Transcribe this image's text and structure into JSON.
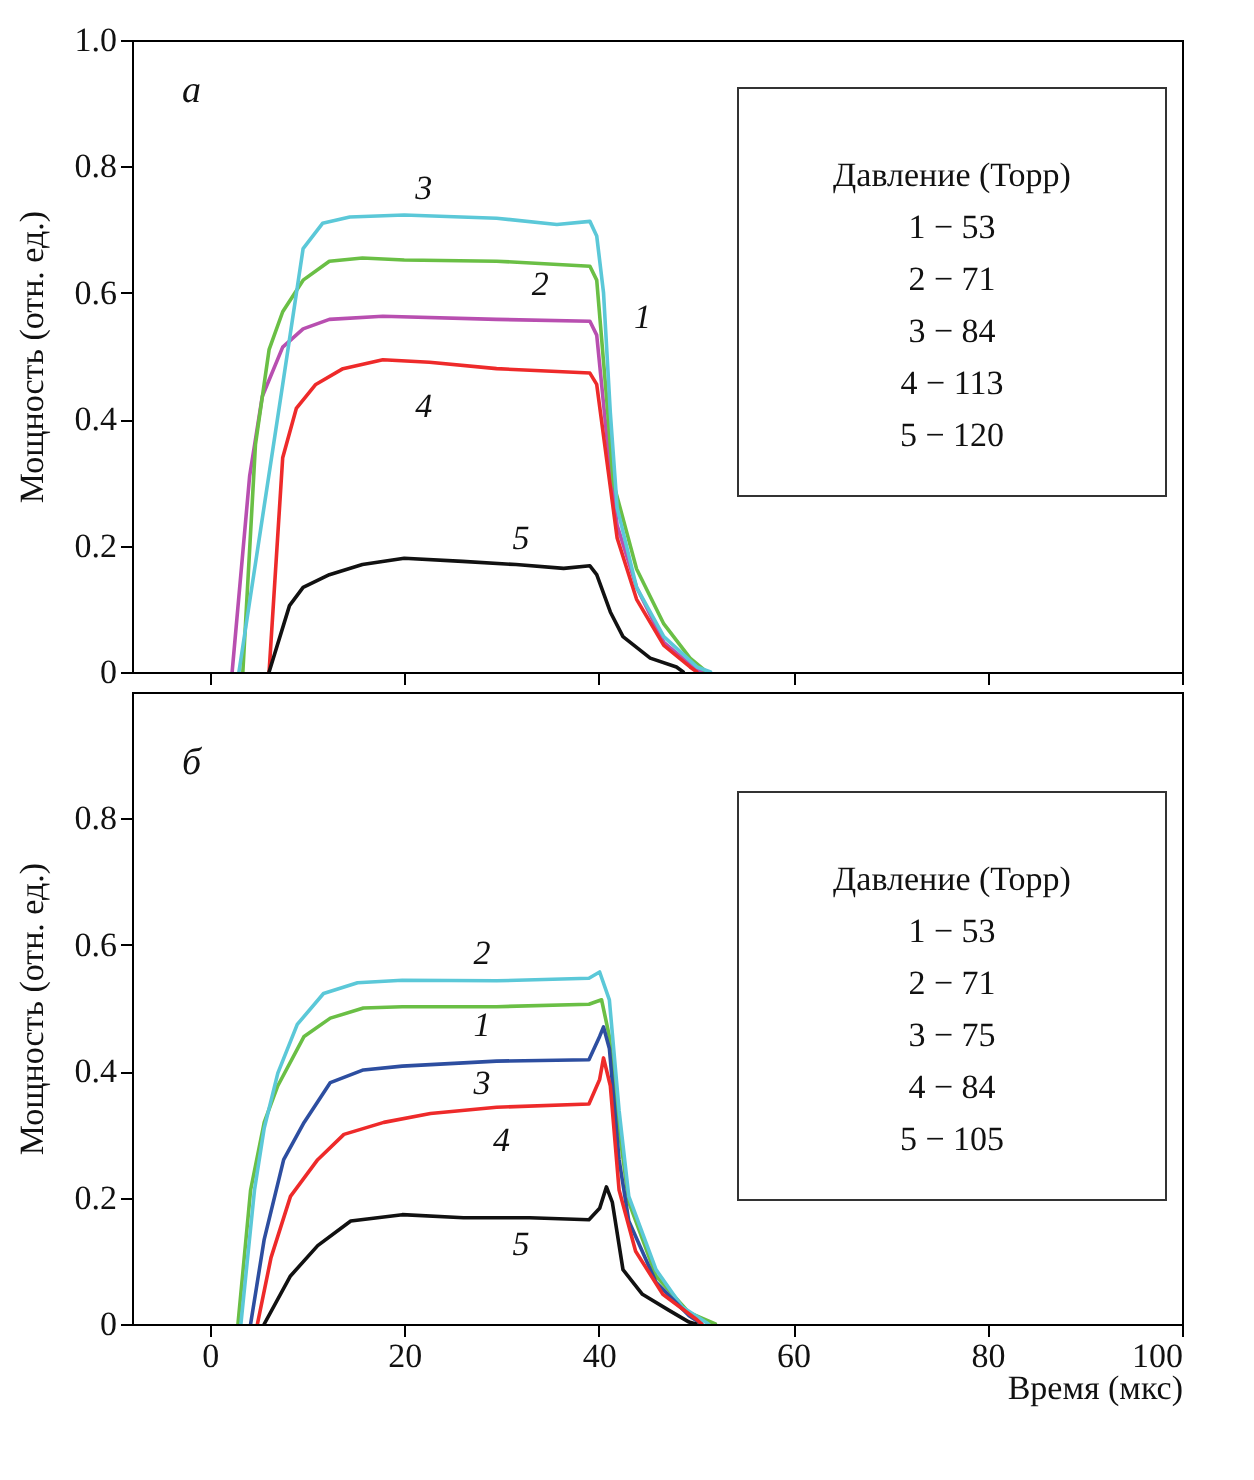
{
  "chart_data": [
    {
      "type": "line",
      "title": "а",
      "ylabel": "Мощность (отн. ед.)",
      "legend_title": "Давление (Торр)",
      "annotations": [
        "1 − 53",
        "2 − 71",
        "3 − 84",
        "4 − 113",
        "5 − 120"
      ],
      "xlim": [
        -8,
        100
      ],
      "ylim": [
        0,
        1
      ],
      "xticks": [
        0,
        20,
        40,
        60,
        80,
        100
      ],
      "yticks": [
        0,
        0.2,
        0.4,
        0.6,
        0.8,
        {
          "value": 1,
          "label": "1.0"
        }
      ],
      "tick_labels": "y",
      "grid": false,
      "series": [
        {
          "name": "1",
          "color": "#b84fb0",
          "x": [
            2.3,
            4.1,
            5.4,
            7.5,
            9.6,
            12.3,
            17.8,
            29.5,
            39.1,
            39.8,
            40.8,
            41.9,
            43.9,
            46.7,
            50.1,
            50.8
          ],
          "values": [
            0,
            0.31,
            0.436,
            0.514,
            0.543,
            0.558,
            0.563,
            0.558,
            0.555,
            0.533,
            0.378,
            0.232,
            0.134,
            0.047,
            0.003,
            0
          ]
        },
        {
          "name": "2",
          "color": "#6abf45",
          "x": [
            3.4,
            4.7,
            6.1,
            7.5,
            9.6,
            12.3,
            15.7,
            20,
            29.5,
            39.1,
            39.8,
            40.8,
            41.5,
            43.9,
            46.7,
            49.4,
            51.1
          ],
          "values": [
            0,
            0.36,
            0.51,
            0.57,
            0.62,
            0.65,
            0.655,
            0.652,
            0.65,
            0.642,
            0.62,
            0.436,
            0.3,
            0.163,
            0.076,
            0.022,
            0
          ]
        },
        {
          "name": "3",
          "color": "#5bc8d8",
          "x": [
            3,
            7.5,
            9.6,
            11.6,
            14.4,
            20,
            29.5,
            35.7,
            39.1,
            39.8,
            40.5,
            41.2,
            41.9,
            43.9,
            46.7,
            50.1,
            51.5
          ],
          "values": [
            0,
            0.455,
            0.67,
            0.71,
            0.72,
            0.723,
            0.718,
            0.708,
            0.713,
            0.69,
            0.6,
            0.41,
            0.26,
            0.134,
            0.056,
            0.008,
            0
          ]
        },
        {
          "name": "4",
          "color": "#ee2a2a",
          "x": [
            6.1,
            7.5,
            8.9,
            10.9,
            13.7,
            17.8,
            22.6,
            29.5,
            39.1,
            39.8,
            40.8,
            41.9,
            43.9,
            46.7,
            49.4,
            50.1
          ],
          "values": [
            0,
            0.339,
            0.417,
            0.455,
            0.48,
            0.494,
            0.49,
            0.48,
            0.473,
            0.455,
            0.339,
            0.212,
            0.115,
            0.042,
            0.008,
            0
          ]
        },
        {
          "name": "5",
          "color": "#111111",
          "x": [
            6.1,
            8.2,
            9.6,
            12.3,
            15.7,
            20,
            26,
            31.5,
            36.4,
            39.1,
            39.8,
            41.2,
            42.5,
            45.3,
            48,
            48.7
          ],
          "values": [
            0,
            0.105,
            0.134,
            0.154,
            0.17,
            0.18,
            0.175,
            0.17,
            0.164,
            0.168,
            0.154,
            0.095,
            0.056,
            0.022,
            0.008,
            0
          ]
        }
      ]
    },
    {
      "type": "line",
      "title": "б",
      "xlabel": "Время (мкс)",
      "ylabel": "Мощность (отн. ед.)",
      "legend_title": "Давление (Торр)",
      "annotations": [
        "1 − 53",
        "2 − 71",
        "3 − 75",
        "4 − 84",
        "5 − 105"
      ],
      "xlim": [
        -8,
        100
      ],
      "ylim": [
        0,
        1
      ],
      "xticks": [
        0,
        20,
        40,
        60,
        80,
        100
      ],
      "yticks": [
        0,
        0.2,
        0.4,
        0.6,
        0.8
      ],
      "grid": false,
      "series": [
        {
          "name": "1",
          "color": "#6abf45",
          "x": [
            2.9,
            4.2,
            5.6,
            7,
            9.7,
            12.4,
            15.8,
            19.8,
            29.5,
            39,
            40.3,
            41.1,
            42.1,
            43.1,
            45.9,
            49.3,
            52
          ],
          "values": [
            0,
            0.212,
            0.319,
            0.377,
            0.455,
            0.484,
            0.5,
            0.502,
            0.502,
            0.506,
            0.513,
            0.455,
            0.309,
            0.193,
            0.076,
            0.018,
            0
          ]
        },
        {
          "name": "2",
          "color": "#5bc8d8",
          "x": [
            3.2,
            4.6,
            5.6,
            7,
            9,
            11.7,
            15.2,
            19.8,
            29.5,
            39,
            40.1,
            41.1,
            42.1,
            43.1,
            45.9,
            48.6,
            51.3
          ],
          "values": [
            0,
            0.212,
            0.31,
            0.397,
            0.474,
            0.523,
            0.54,
            0.544,
            0.543,
            0.547,
            0.557,
            0.513,
            0.338,
            0.202,
            0.086,
            0.027,
            0
          ]
        },
        {
          "name": "3",
          "color": "#2d4ea0",
          "x": [
            4.2,
            5.6,
            7.6,
            9.7,
            12.4,
            15.8,
            19.8,
            29.5,
            39,
            40.1,
            40.5,
            41.1,
            42.1,
            43.1,
            45.9,
            49.3,
            50.6
          ],
          "values": [
            0,
            0.134,
            0.26,
            0.319,
            0.382,
            0.402,
            0.408,
            0.416,
            0.418,
            0.455,
            0.47,
            0.436,
            0.26,
            0.163,
            0.066,
            0.013,
            0
          ]
        },
        {
          "name": "4",
          "color": "#ee2a2a",
          "x": [
            4.9,
            6.3,
            8.3,
            11.1,
            13.8,
            17.9,
            22.7,
            29.5,
            39,
            40.1,
            40.5,
            41.2,
            42.1,
            43.8,
            46.6,
            50,
            50.6
          ],
          "values": [
            0,
            0.105,
            0.202,
            0.26,
            0.3,
            0.319,
            0.333,
            0.343,
            0.348,
            0.387,
            0.421,
            0.377,
            0.212,
            0.115,
            0.047,
            0.008,
            0
          ]
        },
        {
          "name": "5",
          "color": "#111111",
          "x": [
            5.6,
            8.3,
            11.1,
            14.5,
            19.8,
            26.1,
            32.9,
            39,
            40.1,
            40.8,
            41.4,
            42.5,
            44.5,
            47.2,
            49.3,
            50
          ],
          "values": [
            0,
            0.076,
            0.124,
            0.163,
            0.173,
            0.168,
            0.168,
            0.165,
            0.183,
            0.217,
            0.193,
            0.086,
            0.047,
            0.022,
            0.003,
            0
          ]
        }
      ]
    }
  ]
}
